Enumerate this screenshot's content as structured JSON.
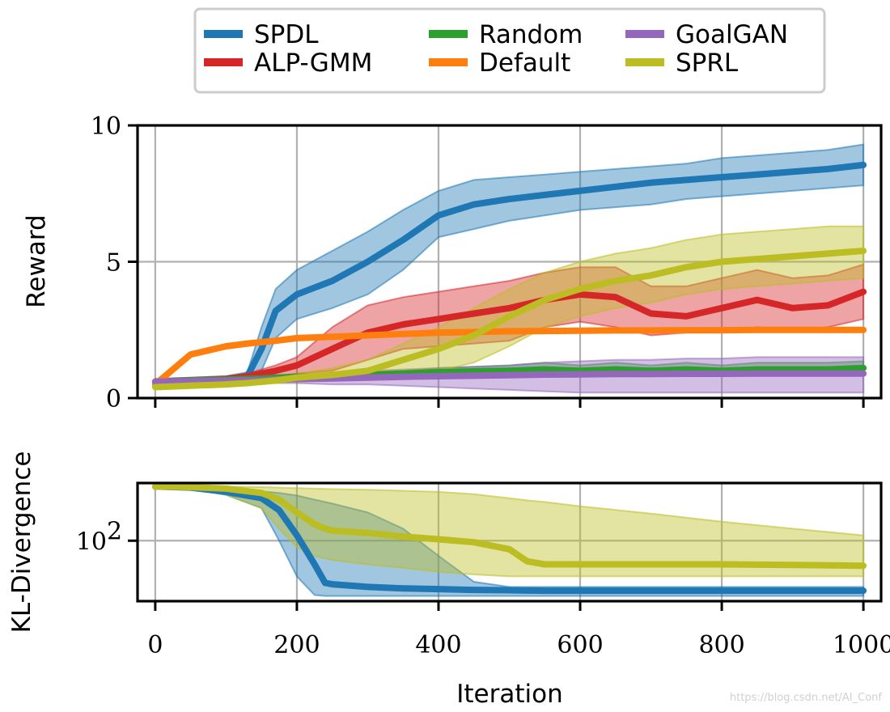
{
  "chart_data": [
    {
      "id": "reward",
      "type": "line",
      "title": "",
      "xlabel": "",
      "ylabel": "Reward",
      "xlim": [
        -25,
        1025
      ],
      "ylim": [
        0,
        10
      ],
      "xticks": [
        0,
        200,
        400,
        600,
        800,
        1000
      ],
      "yticks": [
        0,
        5,
        10
      ],
      "ytick_labels": [
        "0",
        "5",
        "10"
      ],
      "grid": true,
      "legend": {
        "placement": "top-center",
        "entries": [
          {
            "name": "SPDL",
            "color": "#1f77b4"
          },
          {
            "name": "ALP-GMM",
            "color": "#d62728"
          },
          {
            "name": "Random",
            "color": "#2ca02c"
          },
          {
            "name": "Default",
            "color": "#ff7f0e"
          },
          {
            "name": "GoalGAN",
            "color": "#9467bd"
          },
          {
            "name": "SPRL",
            "color": "#bcbd22"
          }
        ]
      },
      "x": [
        0,
        50,
        100,
        130,
        150,
        170,
        200,
        250,
        300,
        350,
        400,
        450,
        500,
        550,
        600,
        650,
        700,
        750,
        800,
        850,
        900,
        950,
        1000
      ],
      "series": [
        {
          "name": "SPDL",
          "color": "#1f77b4",
          "values": [
            0.6,
            0.65,
            0.7,
            0.8,
            1.8,
            3.2,
            3.8,
            4.3,
            5.0,
            5.8,
            6.7,
            7.1,
            7.3,
            7.45,
            7.6,
            7.75,
            7.9,
            8.0,
            8.1,
            8.2,
            8.3,
            8.4,
            8.55
          ],
          "lower": [
            0.5,
            0.55,
            0.6,
            0.7,
            1.0,
            2.2,
            2.9,
            3.3,
            3.8,
            4.7,
            5.9,
            6.2,
            6.5,
            6.7,
            6.9,
            7.0,
            7.1,
            7.3,
            7.4,
            7.5,
            7.6,
            7.7,
            7.8
          ],
          "upper": [
            0.7,
            0.75,
            0.8,
            0.95,
            2.6,
            4.0,
            4.7,
            5.4,
            6.1,
            6.9,
            7.6,
            8.0,
            8.1,
            8.2,
            8.3,
            8.4,
            8.5,
            8.6,
            8.8,
            8.9,
            9.0,
            9.1,
            9.3
          ]
        },
        {
          "name": "ALP-GMM",
          "color": "#d62728",
          "values": [
            0.6,
            0.65,
            0.7,
            0.8,
            0.9,
            1.0,
            1.2,
            1.8,
            2.4,
            2.7,
            2.9,
            3.1,
            3.3,
            3.6,
            3.8,
            3.7,
            3.1,
            3.0,
            3.3,
            3.6,
            3.3,
            3.4,
            3.9
          ],
          "lower": [
            0.5,
            0.55,
            0.6,
            0.7,
            0.75,
            0.8,
            0.9,
            1.0,
            1.4,
            1.8,
            1.9,
            2.0,
            2.1,
            2.6,
            2.8,
            2.6,
            2.3,
            2.4,
            2.4,
            2.6,
            2.5,
            2.6,
            2.9
          ],
          "upper": [
            0.7,
            0.75,
            0.8,
            0.9,
            1.05,
            1.2,
            1.5,
            2.6,
            3.4,
            3.7,
            3.9,
            4.1,
            4.3,
            4.6,
            4.8,
            4.8,
            4.1,
            4.1,
            4.4,
            4.7,
            4.4,
            4.5,
            4.9
          ]
        },
        {
          "name": "Random",
          "color": "#2ca02c",
          "values": [
            0.6,
            0.65,
            0.68,
            0.7,
            0.72,
            0.75,
            0.78,
            0.8,
            0.85,
            0.9,
            0.95,
            0.98,
            1.0,
            1.05,
            1.0,
            1.05,
            1.0,
            1.05,
            1.0,
            1.05,
            1.05,
            1.05,
            1.1
          ],
          "lower": [
            0.55,
            0.6,
            0.62,
            0.63,
            0.65,
            0.68,
            0.7,
            0.72,
            0.75,
            0.78,
            0.8,
            0.82,
            0.85,
            0.85,
            0.85,
            0.85,
            0.85,
            0.85,
            0.85,
            0.85,
            0.85,
            0.85,
            0.9
          ],
          "upper": [
            0.65,
            0.72,
            0.75,
            0.77,
            0.8,
            0.82,
            0.86,
            0.9,
            0.95,
            1.0,
            1.1,
            1.15,
            1.2,
            1.3,
            1.2,
            1.3,
            1.2,
            1.3,
            1.2,
            1.3,
            1.3,
            1.3,
            1.35
          ]
        },
        {
          "name": "Default",
          "color": "#ff7f0e",
          "values": [
            0.5,
            1.6,
            1.9,
            2.0,
            2.05,
            2.1,
            2.2,
            2.25,
            2.3,
            2.35,
            2.4,
            2.42,
            2.45,
            2.46,
            2.47,
            2.48,
            2.48,
            2.49,
            2.49,
            2.5,
            2.5,
            2.5,
            2.5
          ],
          "lower": [
            0.5,
            1.55,
            1.85,
            1.95,
            2.0,
            2.05,
            2.15,
            2.2,
            2.25,
            2.3,
            2.35,
            2.37,
            2.4,
            2.41,
            2.42,
            2.43,
            2.43,
            2.44,
            2.44,
            2.45,
            2.45,
            2.45,
            2.45
          ],
          "upper": [
            0.55,
            1.65,
            1.95,
            2.05,
            2.1,
            2.15,
            2.25,
            2.3,
            2.35,
            2.4,
            2.45,
            2.47,
            2.5,
            2.51,
            2.52,
            2.53,
            2.53,
            2.54,
            2.54,
            2.55,
            2.55,
            2.55,
            2.55
          ]
        },
        {
          "name": "GoalGAN",
          "color": "#9467bd",
          "values": [
            0.6,
            0.62,
            0.64,
            0.65,
            0.66,
            0.68,
            0.7,
            0.72,
            0.75,
            0.78,
            0.8,
            0.82,
            0.84,
            0.86,
            0.87,
            0.88,
            0.88,
            0.89,
            0.89,
            0.9,
            0.9,
            0.9,
            0.9
          ],
          "lower": [
            0.55,
            0.55,
            0.55,
            0.55,
            0.55,
            0.55,
            0.55,
            0.5,
            0.5,
            0.45,
            0.4,
            0.35,
            0.3,
            0.25,
            0.2,
            0.2,
            0.2,
            0.2,
            0.2,
            0.2,
            0.2,
            0.2,
            0.2
          ],
          "upper": [
            0.65,
            0.68,
            0.72,
            0.74,
            0.76,
            0.8,
            0.85,
            0.9,
            1.0,
            1.05,
            1.1,
            1.15,
            1.2,
            1.3,
            1.35,
            1.4,
            1.4,
            1.45,
            1.45,
            1.5,
            1.5,
            1.5,
            1.5
          ]
        },
        {
          "name": "SPRL",
          "color": "#bcbd22",
          "values": [
            0.4,
            0.45,
            0.5,
            0.55,
            0.6,
            0.65,
            0.75,
            0.85,
            1.0,
            1.4,
            1.8,
            2.3,
            3.0,
            3.6,
            4.0,
            4.3,
            4.5,
            4.8,
            5.0,
            5.1,
            5.2,
            5.3,
            5.4
          ],
          "lower": [
            0.35,
            0.4,
            0.45,
            0.5,
            0.5,
            0.55,
            0.6,
            0.65,
            0.7,
            0.8,
            1.0,
            1.3,
            1.9,
            2.6,
            3.0,
            3.3,
            3.5,
            3.8,
            4.0,
            4.1,
            4.2,
            4.3,
            4.4
          ],
          "upper": [
            0.45,
            0.5,
            0.55,
            0.6,
            0.7,
            0.75,
            0.9,
            1.1,
            1.4,
            2.0,
            2.6,
            3.3,
            4.0,
            4.6,
            5.0,
            5.3,
            5.5,
            5.8,
            6.0,
            6.1,
            6.2,
            6.3,
            6.3
          ]
        }
      ]
    },
    {
      "id": "kl",
      "type": "line",
      "title": "",
      "xlabel": "Iteration",
      "ylabel": "KL-Divergence",
      "yscale": "log",
      "xlim": [
        -25,
        1025
      ],
      "ylim": [
        13,
        700
      ],
      "xticks": [
        0,
        200,
        400,
        600,
        800,
        1000
      ],
      "xtick_labels": [
        "0",
        "200",
        "400",
        "600",
        "800",
        "1000"
      ],
      "yticks": [
        100
      ],
      "ytick_labels": [
        {
          "base": "10",
          "exp": "2"
        }
      ],
      "grid": true,
      "x": [
        0,
        50,
        100,
        150,
        175,
        200,
        225,
        240,
        250,
        300,
        350,
        400,
        450,
        500,
        525,
        550,
        600,
        700,
        800,
        900,
        1000
      ],
      "series": [
        {
          "name": "SPDL",
          "color": "#1f77b4",
          "values": [
            620,
            600,
            520,
            420,
            280,
            120,
            45,
            24,
            23,
            21,
            20,
            19.5,
            19,
            18.8,
            18.6,
            18.5,
            18.5,
            18.5,
            18.5,
            18.5,
            18.5
          ],
          "lower": [
            600,
            580,
            470,
            300,
            100,
            30,
            16,
            15.5,
            15.5,
            15.5,
            15.5,
            15.5,
            15.5,
            15.5,
            15.5,
            15.5,
            15.5,
            15.5,
            15.5,
            15.5,
            15.5
          ],
          "upper": [
            640,
            620,
            570,
            530,
            500,
            460,
            400,
            370,
            350,
            260,
            150,
            60,
            25,
            21,
            21,
            21,
            21,
            21,
            21,
            21,
            21
          ]
        },
        {
          "name": "SPRL",
          "color": "#bcbd22",
          "values": [
            620,
            610,
            580,
            500,
            400,
            260,
            175,
            150,
            140,
            130,
            115,
            105,
            95,
            75,
            50,
            45,
            45,
            45,
            45,
            44,
            43
          ],
          "lower": [
            600,
            580,
            470,
            300,
            150,
            80,
            60,
            55,
            52,
            45,
            40,
            35,
            32,
            30,
            30,
            30,
            30,
            30,
            30,
            30,
            30
          ],
          "upper": [
            640,
            630,
            620,
            610,
            600,
            590,
            580,
            575,
            570,
            560,
            540,
            520,
            480,
            420,
            390,
            370,
            320,
            250,
            190,
            150,
            120
          ]
        }
      ]
    }
  ],
  "watermark": "https://blog.csdn.net/AI_Conf"
}
